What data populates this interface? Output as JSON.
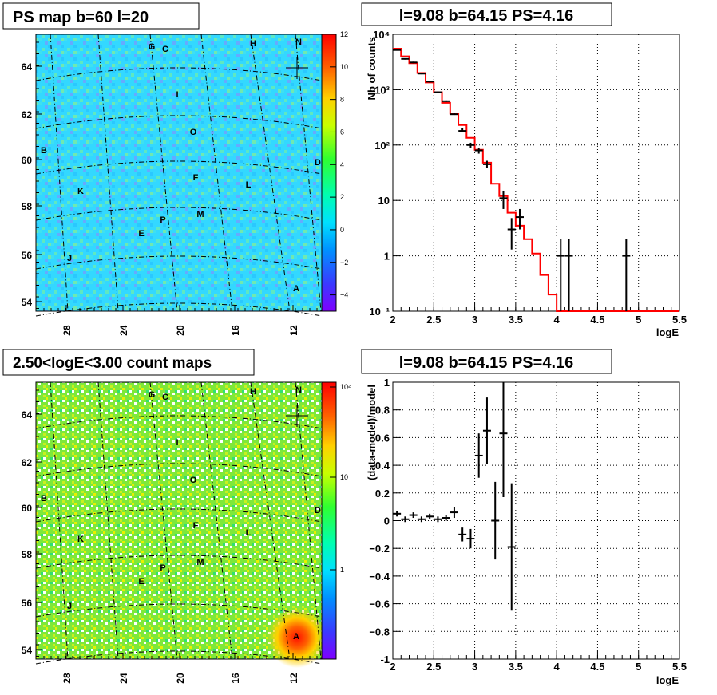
{
  "panels": {
    "tl_title": "PS map b=60 l=20",
    "tr_title": "l=9.08 b=64.15 PS=4.16",
    "bl_title": "2.50<logE<3.00 count maps",
    "br_title": "l=9.08 b=64.15 PS=4.16"
  },
  "map_axes": {
    "x_ticks": [
      "28",
      "24",
      "20",
      "16",
      "12"
    ],
    "y_ticks": [
      "64",
      "62",
      "60",
      "58",
      "56",
      "54"
    ],
    "sources": [
      "G",
      "C",
      "H",
      "N",
      "I",
      "O",
      "B",
      "D",
      "F",
      "K",
      "L",
      "M",
      "P",
      "E",
      "J",
      "A"
    ]
  },
  "colorbars": {
    "ps_ticks": [
      "12",
      "10",
      "8",
      "6",
      "4",
      "2",
      "0",
      "−2",
      "−4"
    ],
    "count_ticks": [
      "10²",
      "10",
      "1"
    ]
  },
  "chart_data": [
    {
      "type": "scatter",
      "title": "l=9.08 b=64.15 PS=4.16",
      "xlabel": "logE",
      "ylabel": "Nb of counts",
      "xlim": [
        2,
        5.5
      ],
      "ylim": [
        0.1,
        10000
      ],
      "yscale": "log",
      "grid": true,
      "x_ticks": [
        "2",
        "2.5",
        "3",
        "3.5",
        "4",
        "4.5",
        "5",
        "5.5"
      ],
      "y_ticks": [
        "10⁻¹",
        "1",
        "10",
        "10²",
        "10³",
        "10⁴"
      ],
      "series": [
        {
          "color": "#ff0000",
          "step_edges": [
            2.0,
            2.1,
            2.2,
            2.3,
            2.4,
            2.5,
            2.6,
            2.7,
            2.8,
            2.9,
            3.0,
            3.1,
            3.2,
            3.3,
            3.4,
            3.5,
            3.6,
            3.7,
            3.8,
            3.9,
            4.0,
            5.5
          ],
          "step_values": [
            5500,
            4000,
            3000,
            2000,
            1350,
            900,
            580,
            370,
            230,
            135,
            82,
            48,
            20,
            12,
            6,
            3.5,
            2.0,
            1.1,
            0.45,
            0.2,
            0.1
          ]
        },
        {
          "color": "#000000",
          "x": [
            2.05,
            2.15,
            2.25,
            2.35,
            2.45,
            2.55,
            2.65,
            2.75,
            2.85,
            2.95,
            3.05,
            3.15,
            3.35,
            3.45,
            3.55,
            4.05,
            4.15,
            4.85
          ],
          "y": [
            5200,
            3600,
            3100,
            1950,
            1400,
            900,
            620,
            360,
            180,
            100,
            80,
            45,
            11,
            3,
            5,
            1,
            1,
            1
          ],
          "y_lo": [
            5100,
            3500,
            3000,
            1900,
            1350,
            870,
            600,
            350,
            170,
            90,
            70,
            38,
            7,
            1.3,
            3,
            0.1,
            0.1,
            0.1
          ],
          "y_hi": [
            5300,
            3700,
            3200,
            2000,
            1450,
            930,
            640,
            380,
            200,
            110,
            90,
            52,
            15,
            4.8,
            7,
            2,
            2,
            2
          ]
        }
      ]
    },
    {
      "type": "scatter",
      "title": "l=9.08 b=64.15 PS=4.16",
      "xlabel": "logE",
      "ylabel": "(data-model)/model",
      "xlim": [
        2,
        5.5
      ],
      "ylim": [
        -1,
        1
      ],
      "grid": true,
      "x_ticks": [
        "2",
        "2.5",
        "3",
        "3.5",
        "4",
        "4.5",
        "5",
        "5.5"
      ],
      "y_ticks": [
        "-1",
        "−0.8",
        "−0.6",
        "−0.4",
        "−0.2",
        "0",
        "0.2",
        "0.4",
        "0.6",
        "0.8",
        "1"
      ],
      "series": [
        {
          "color": "#000000",
          "x": [
            2.05,
            2.15,
            2.25,
            2.35,
            2.45,
            2.55,
            2.65,
            2.75,
            2.85,
            2.95,
            3.05,
            3.15,
            3.25,
            3.35,
            3.45
          ],
          "y": [
            0.05,
            0.01,
            0.04,
            0.01,
            0.03,
            0.01,
            0.02,
            0.06,
            -0.1,
            -0.13,
            0.47,
            0.65,
            0.0,
            0.63,
            -0.19
          ],
          "y_lo": [
            0.03,
            -0.01,
            0.02,
            -0.01,
            0.01,
            -0.01,
            0.0,
            0.02,
            -0.15,
            -0.2,
            0.31,
            0.41,
            -0.28,
            0.17,
            -0.65
          ],
          "y_hi": [
            0.07,
            0.03,
            0.06,
            0.03,
            0.05,
            0.03,
            0.04,
            0.1,
            -0.05,
            -0.06,
            0.63,
            0.89,
            0.28,
            1.0,
            0.27
          ]
        }
      ]
    }
  ]
}
